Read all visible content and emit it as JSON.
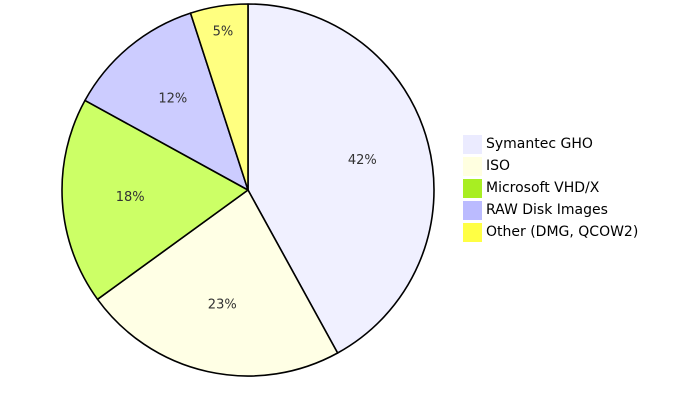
{
  "chart_data": {
    "type": "pie",
    "title": "",
    "legend_position": "right",
    "slices": [
      {
        "label": "Symantec GHO",
        "value": 42,
        "display": "42%",
        "color": "#f0f0ff",
        "legend_color": "#ebebff"
      },
      {
        "label": "ISO",
        "value": 23,
        "display": "23%",
        "color": "#ffffe5",
        "legend_color": "#ffffe0"
      },
      {
        "label": "Microsoft VHD/X",
        "value": 18,
        "display": "18%",
        "color": "#ccff66",
        "legend_color": "#a8ee22"
      },
      {
        "label": "RAW Disk Images",
        "value": 12,
        "display": "12%",
        "color": "#ccccff",
        "legend_color": "#bbbbff"
      },
      {
        "label": "Other (DMG, QCOW2)",
        "value": 5,
        "display": "5%",
        "color": "#ffff80",
        "legend_color": "#ffff44"
      }
    ]
  }
}
